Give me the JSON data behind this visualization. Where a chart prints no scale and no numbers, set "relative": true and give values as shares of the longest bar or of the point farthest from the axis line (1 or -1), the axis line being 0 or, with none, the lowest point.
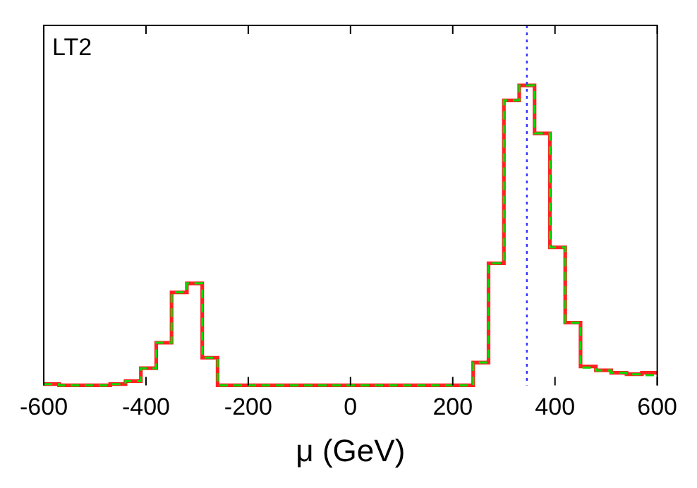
{
  "chart_data": {
    "type": "step",
    "relative": true,
    "xlabel": "μ (GeV)",
    "xlim": [
      -600,
      600
    ],
    "xticks": [
      -600,
      -400,
      -200,
      0,
      200,
      400,
      600
    ],
    "grid": false,
    "legend": false,
    "annotations": [
      "LT2"
    ],
    "ref_lines": [
      {
        "axis": "x",
        "value": 345,
        "color": "#3333ff",
        "line_style": "dotted"
      }
    ],
    "series": [
      {
        "color": "#ff2222",
        "x": [
          -600,
          -570,
          -470,
          -440,
          -410,
          -380,
          -350,
          -320,
          -290,
          -260,
          240,
          270,
          300,
          330,
          360,
          390,
          420,
          450,
          480,
          510,
          540,
          570,
          600
        ],
        "values": [
          0.004,
          0,
          0.004,
          0.014,
          0.057,
          0.142,
          0.31,
          0.34,
          0.092,
          0,
          0.076,
          0.407,
          0.95,
          1,
          0.84,
          0.46,
          0.209,
          0.063,
          0.05,
          0.042,
          0.037,
          0.042,
          0.042
        ]
      },
      {
        "color": "#00dd00",
        "line_style": "dashed",
        "x": [
          -600,
          -570,
          -470,
          -440,
          -410,
          -380,
          -350,
          -320,
          -290,
          -260,
          240,
          270,
          300,
          330,
          360,
          390,
          420,
          450,
          480,
          510,
          540,
          570,
          600
        ],
        "values": [
          0.004,
          0,
          0.004,
          0.014,
          0.057,
          0.142,
          0.31,
          0.34,
          0.092,
          0,
          0.076,
          0.407,
          0.95,
          1,
          0.84,
          0.46,
          0.209,
          0.059,
          0.05,
          0.042,
          0.037,
          0.034,
          0.034
        ]
      }
    ]
  }
}
